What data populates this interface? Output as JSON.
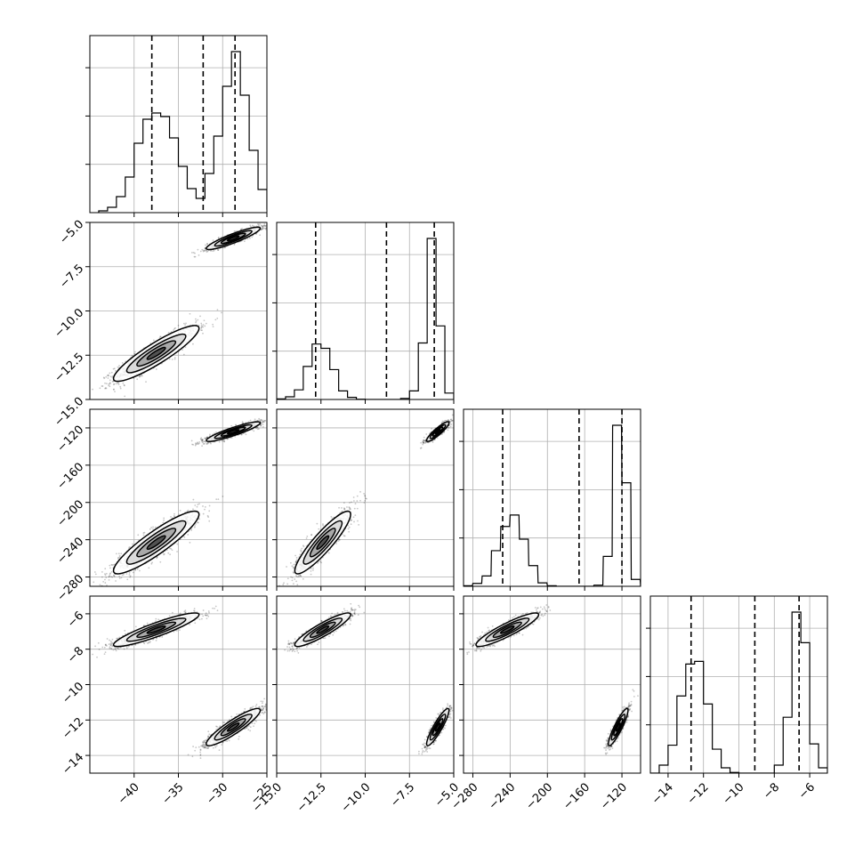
{
  "chart_data": {
    "type": "corner",
    "grid": true,
    "params": [
      {
        "range": [
          -45,
          -25
        ],
        "xticks": [
          -40,
          -35,
          -30,
          -25
        ],
        "xtick_labels": [
          "−40",
          "−35",
          "−30",
          "−25"
        ],
        "yticks": [],
        "ytick_labels": [],
        "quantiles": [
          -38,
          -32.2,
          -28.6
        ],
        "hist": {
          "bins": [
            -44,
            -43,
            -42,
            -41,
            -40,
            -39,
            -38,
            -37,
            -36,
            -35,
            -34,
            -33,
            -32,
            -31,
            -30,
            -29,
            -28,
            -27,
            -26,
            -25
          ],
          "counts": [
            0.2,
            0.6,
            1.8,
            4,
            7.8,
            10.5,
            11.2,
            10.8,
            8.4,
            5.2,
            2.7,
            1.6,
            4.4,
            8.6,
            14.2,
            18.1,
            13.2,
            7.0,
            2.6,
            0.4
          ]
        }
      },
      {
        "range": [
          -15,
          -5
        ],
        "xticks": [
          -15,
          -12.5,
          -10,
          -7.5,
          -5
        ],
        "xtick_labels": [
          "−15.0",
          "−12.5",
          "−10.0",
          "−7.5",
          "−5.0"
        ],
        "yticks": [
          -5,
          -7.5,
          -10,
          -12.5,
          -15
        ],
        "ytick_labels": [
          "−5.0",
          "−7.5",
          "−10.0",
          "−12.5",
          "−15.0"
        ],
        "quantiles": [
          -12.8,
          -8.8,
          -6.1
        ],
        "hist": {
          "bins": [
            -15,
            -14.5,
            -14,
            -13.5,
            -13,
            -12.5,
            -12,
            -11.5,
            -11,
            -10.5,
            -10,
            -9.5,
            -9,
            -8.5,
            -8,
            -7.5,
            -7,
            -6.5,
            -6,
            -5.5
          ],
          "counts": [
            0.1,
            0.5,
            1.8,
            6.2,
            10.4,
            9.6,
            5.6,
            1.6,
            0.4,
            0.05,
            0,
            0,
            0,
            0,
            0.2,
            1.6,
            10.6,
            30.2,
            13.8,
            1.2
          ]
        }
      },
      {
        "range": [
          -290,
          -100
        ],
        "xticks": [
          -280,
          -240,
          -200,
          -160,
          -120
        ],
        "xtick_labels": [
          "−280",
          "−240",
          "−200",
          "−160",
          "−120"
        ],
        "yticks": [
          -120,
          -160,
          -200,
          -240,
          -280
        ],
        "ytick_labels": [
          "−120",
          "−160",
          "−200",
          "−240",
          "−280"
        ],
        "quantiles": [
          -248,
          -166,
          -120
        ],
        "hist": {
          "bins": [
            -290,
            -280,
            -270,
            -260,
            -250,
            -240,
            -230,
            -220,
            -210,
            -200,
            -190,
            -180,
            -170,
            -160,
            -150,
            -140,
            -130,
            -120,
            -110,
            -100
          ],
          "counts": [
            0.1,
            0.5,
            1.8,
            6.2,
            10.4,
            12.4,
            8.2,
            3.6,
            0.6,
            0.1,
            0,
            0,
            0,
            0,
            0.2,
            5.2,
            28,
            18,
            1.2,
            0
          ]
        }
      },
      {
        "range": [
          -15,
          -5
        ],
        "xticks": [
          -14,
          -12,
          -10,
          -8,
          -6
        ],
        "xtick_labels": [
          "−14",
          "−12",
          "−10",
          "−8",
          "−6"
        ],
        "yticks": [
          -6,
          -8,
          -10,
          -12,
          -14
        ],
        "ytick_labels": [
          "−6",
          "−8",
          "−10",
          "−12",
          "−14"
        ],
        "quantiles": [
          -12.7,
          -9.1,
          -6.6
        ],
        "hist": {
          "bins": [
            -15,
            -14.5,
            -14,
            -13.5,
            -13,
            -12.5,
            -12,
            -11.5,
            -11,
            -10.5,
            -10,
            -9.5,
            -9,
            -8.5,
            -8,
            -7.5,
            -7,
            -6.5,
            -6,
            -5.5
          ],
          "counts": [
            0,
            0.6,
            2.1,
            5.8,
            8.2,
            8.4,
            5.2,
            1.8,
            0.4,
            0.05,
            0,
            0,
            0,
            0,
            0.6,
            4.2,
            12.1,
            9.8,
            2.2,
            0.4
          ]
        }
      }
    ],
    "modes": [
      {
        "mean": [
          -37.5,
          -12.4,
          -243,
          -6.9
        ],
        "sd": [
          2.3,
          0.75,
          16,
          0.45
        ]
      },
      {
        "mean": [
          -28.8,
          -5.9,
          -124,
          -12.4
        ],
        "sd": [
          1.45,
          0.3,
          5,
          0.5
        ]
      }
    ]
  }
}
